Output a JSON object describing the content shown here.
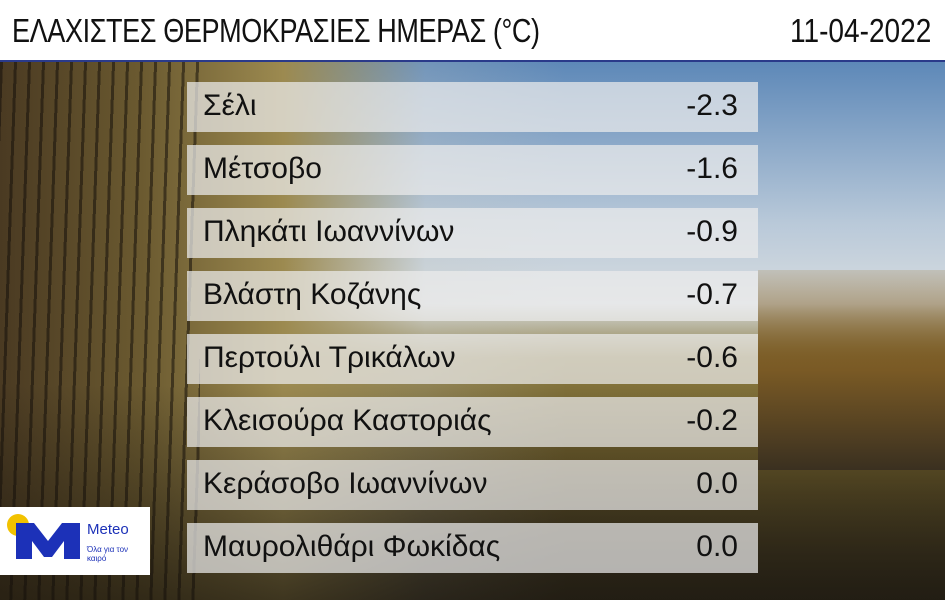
{
  "header": {
    "title": "ΕΛΑΧΙΣΤΕΣ ΘΕΡΜΟΚΡΑΣΙΕΣ ΗΜΕΡΑΣ (°C)",
    "date": "11-04-2022"
  },
  "rows": [
    {
      "name": "Σέλι",
      "value": "-2.3"
    },
    {
      "name": "Μέτσοβο",
      "value": "-1.6"
    },
    {
      "name": "Πληκάτι Ιωαννίνων",
      "value": "-0.9"
    },
    {
      "name": "Βλάστη Κοζάνης",
      "value": "-0.7"
    },
    {
      "name": "Περτούλι Τρικάλων",
      "value": "-0.6"
    },
    {
      "name": "Κλεισούρα Καστοριάς",
      "value": "-0.2"
    },
    {
      "name": "Κεράσοβο Ιωαννίνων",
      "value": "0.0"
    },
    {
      "name": "Μαυρολιθάρι Φωκίδας",
      "value": "0.0"
    }
  ],
  "logo": {
    "brand": "Meteo",
    "tagline": "Όλα για τον καιρό",
    "colors": {
      "blue": "#1c31b8",
      "sun": "#f2c200"
    }
  }
}
